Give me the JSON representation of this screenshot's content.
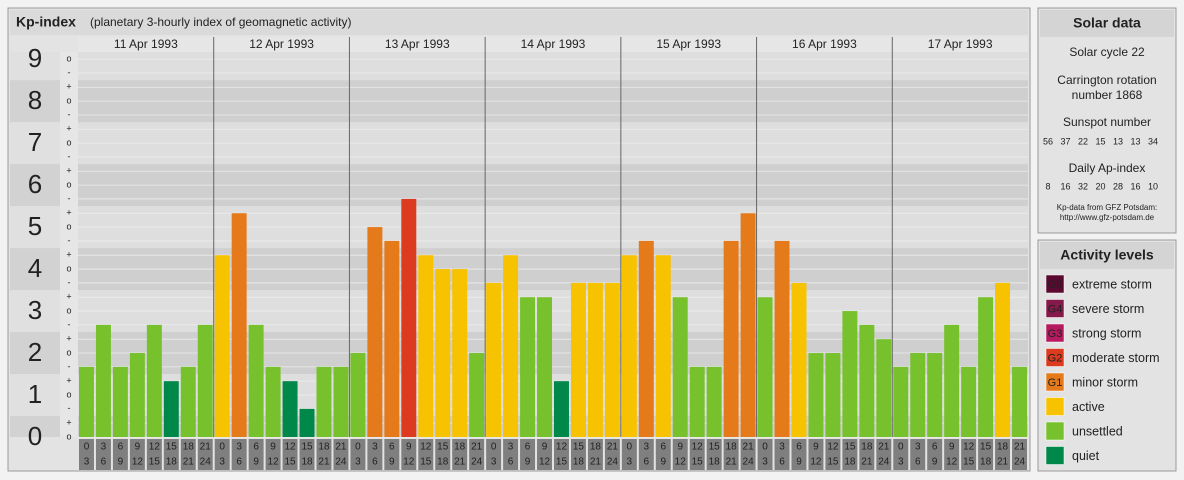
{
  "chart_data": {
    "type": "bar",
    "title": "Kp-index",
    "subtitle": "(planetary 3-hourly index of geomagnetic activity)",
    "days": [
      "11 Apr 1993",
      "12 Apr 1993",
      "13 Apr 1993",
      "14 Apr 1993",
      "15 Apr 1993",
      "16 Apr 1993",
      "17 Apr 1993"
    ],
    "hours_start": [
      0,
      3,
      6,
      9,
      12,
      15,
      18,
      21
    ],
    "hours_end": [
      3,
      6,
      9,
      12,
      15,
      18,
      21,
      24
    ],
    "values": [
      1.67,
      2.67,
      1.67,
      2,
      2.67,
      1.33,
      1.67,
      2.67,
      4.33,
      5.33,
      2.67,
      1.67,
      1.33,
      0.67,
      1.67,
      1.67,
      2,
      5,
      4.67,
      5.67,
      4.33,
      4,
      4,
      2,
      3.67,
      4.33,
      3.33,
      3.33,
      1.33,
      3.67,
      3.67,
      3.67,
      4.33,
      4.67,
      4.33,
      3.33,
      1.67,
      1.67,
      4.67,
      5.33,
      3.33,
      4.67,
      3.67,
      2,
      2,
      3,
      2.67,
      2.33,
      1.67,
      2,
      2,
      2.67,
      1.67,
      3.33,
      3.67,
      1.67
    ],
    "colors": [
      "#77c22c",
      "#77c22c",
      "#77c22c",
      "#77c22c",
      "#77c22c",
      "#00884b",
      "#77c22c",
      "#77c22c",
      "#f7c200",
      "#e57a1a",
      "#77c22c",
      "#77c22c",
      "#00884b",
      "#00884b",
      "#77c22c",
      "#77c22c",
      "#77c22c",
      "#e57a1a",
      "#e57a1a",
      "#dc3b20",
      "#f7c200",
      "#f7c200",
      "#f7c200",
      "#77c22c",
      "#f7c200",
      "#f7c200",
      "#77c22c",
      "#77c22c",
      "#00884b",
      "#f7c200",
      "#f7c200",
      "#f7c200",
      "#f7c200",
      "#e57a1a",
      "#f7c200",
      "#77c22c",
      "#77c22c",
      "#77c22c",
      "#e57a1a",
      "#e57a1a",
      "#77c22c",
      "#e57a1a",
      "#f7c200",
      "#77c22c",
      "#77c22c",
      "#77c22c",
      "#77c22c",
      "#77c22c",
      "#77c22c",
      "#77c22c",
      "#77c22c",
      "#77c22c",
      "#77c22c",
      "#77c22c",
      "#f7c200",
      "#77c22c"
    ],
    "ylim": [
      0,
      9.17
    ],
    "yticks": [
      0,
      1,
      2,
      3,
      4,
      5,
      6,
      7,
      8,
      9
    ],
    "minor_ticks": [
      {
        "value": 0,
        "label": "o"
      },
      {
        "value": 0.33,
        "label": "+"
      },
      {
        "value": 0.67,
        "label": "-"
      },
      {
        "value": 1,
        "label": "o"
      },
      {
        "value": 1.33,
        "label": "+"
      },
      {
        "value": 1.67,
        "label": "-"
      },
      {
        "value": 2,
        "label": "o"
      },
      {
        "value": 2.33,
        "label": "+"
      },
      {
        "value": 2.67,
        "label": "-"
      },
      {
        "value": 3,
        "label": "o"
      },
      {
        "value": 3.33,
        "label": "+"
      },
      {
        "value": 3.67,
        "label": "-"
      },
      {
        "value": 4,
        "label": "o"
      },
      {
        "value": 4.33,
        "label": "+"
      },
      {
        "value": 4.67,
        "label": "-"
      },
      {
        "value": 5,
        "label": "o"
      },
      {
        "value": 5.33,
        "label": "+"
      },
      {
        "value": 5.67,
        "label": "-"
      },
      {
        "value": 6,
        "label": "o"
      },
      {
        "value": 6.33,
        "label": "+"
      },
      {
        "value": 6.67,
        "label": "-"
      },
      {
        "value": 7,
        "label": "o"
      },
      {
        "value": 7.33,
        "label": "+"
      },
      {
        "value": 7.67,
        "label": "-"
      },
      {
        "value": 8,
        "label": "o"
      },
      {
        "value": 8.33,
        "label": "+"
      },
      {
        "value": 8.67,
        "label": "-"
      },
      {
        "value": 9,
        "label": "o"
      }
    ]
  },
  "solar_data": {
    "title": "Solar data",
    "cycle": "Solar cycle 22",
    "carrington_1": "Carrington rotation",
    "carrington_2": "number 1868",
    "sunspot_title": "Sunspot number",
    "sunspots": [
      56,
      37,
      22,
      15,
      13,
      13,
      34
    ],
    "ap_title": "Daily Ap-index",
    "ap": [
      8,
      16,
      32,
      20,
      28,
      16,
      10
    ],
    "source": "Kp-data from GFZ Potsdam:",
    "url": "http://www.gfz-potsdam.de"
  },
  "activity_levels": {
    "title": "Activity levels",
    "items": [
      {
        "badge": "G5",
        "label": "extreme storm",
        "color": "#5a0a30"
      },
      {
        "badge": "G4",
        "label": "severe storm",
        "color": "#85194a"
      },
      {
        "badge": "G3",
        "label": "strong storm",
        "color": "#b5195e"
      },
      {
        "badge": "G2",
        "label": "moderate storm",
        "color": "#dc3b20"
      },
      {
        "badge": "G1",
        "label": "minor storm",
        "color": "#e57a1a"
      },
      {
        "label": "active",
        "color": "#f7c200"
      },
      {
        "label": "unsettled",
        "color": "#77c22c"
      },
      {
        "label": "quiet",
        "color": "#00884b"
      }
    ]
  }
}
